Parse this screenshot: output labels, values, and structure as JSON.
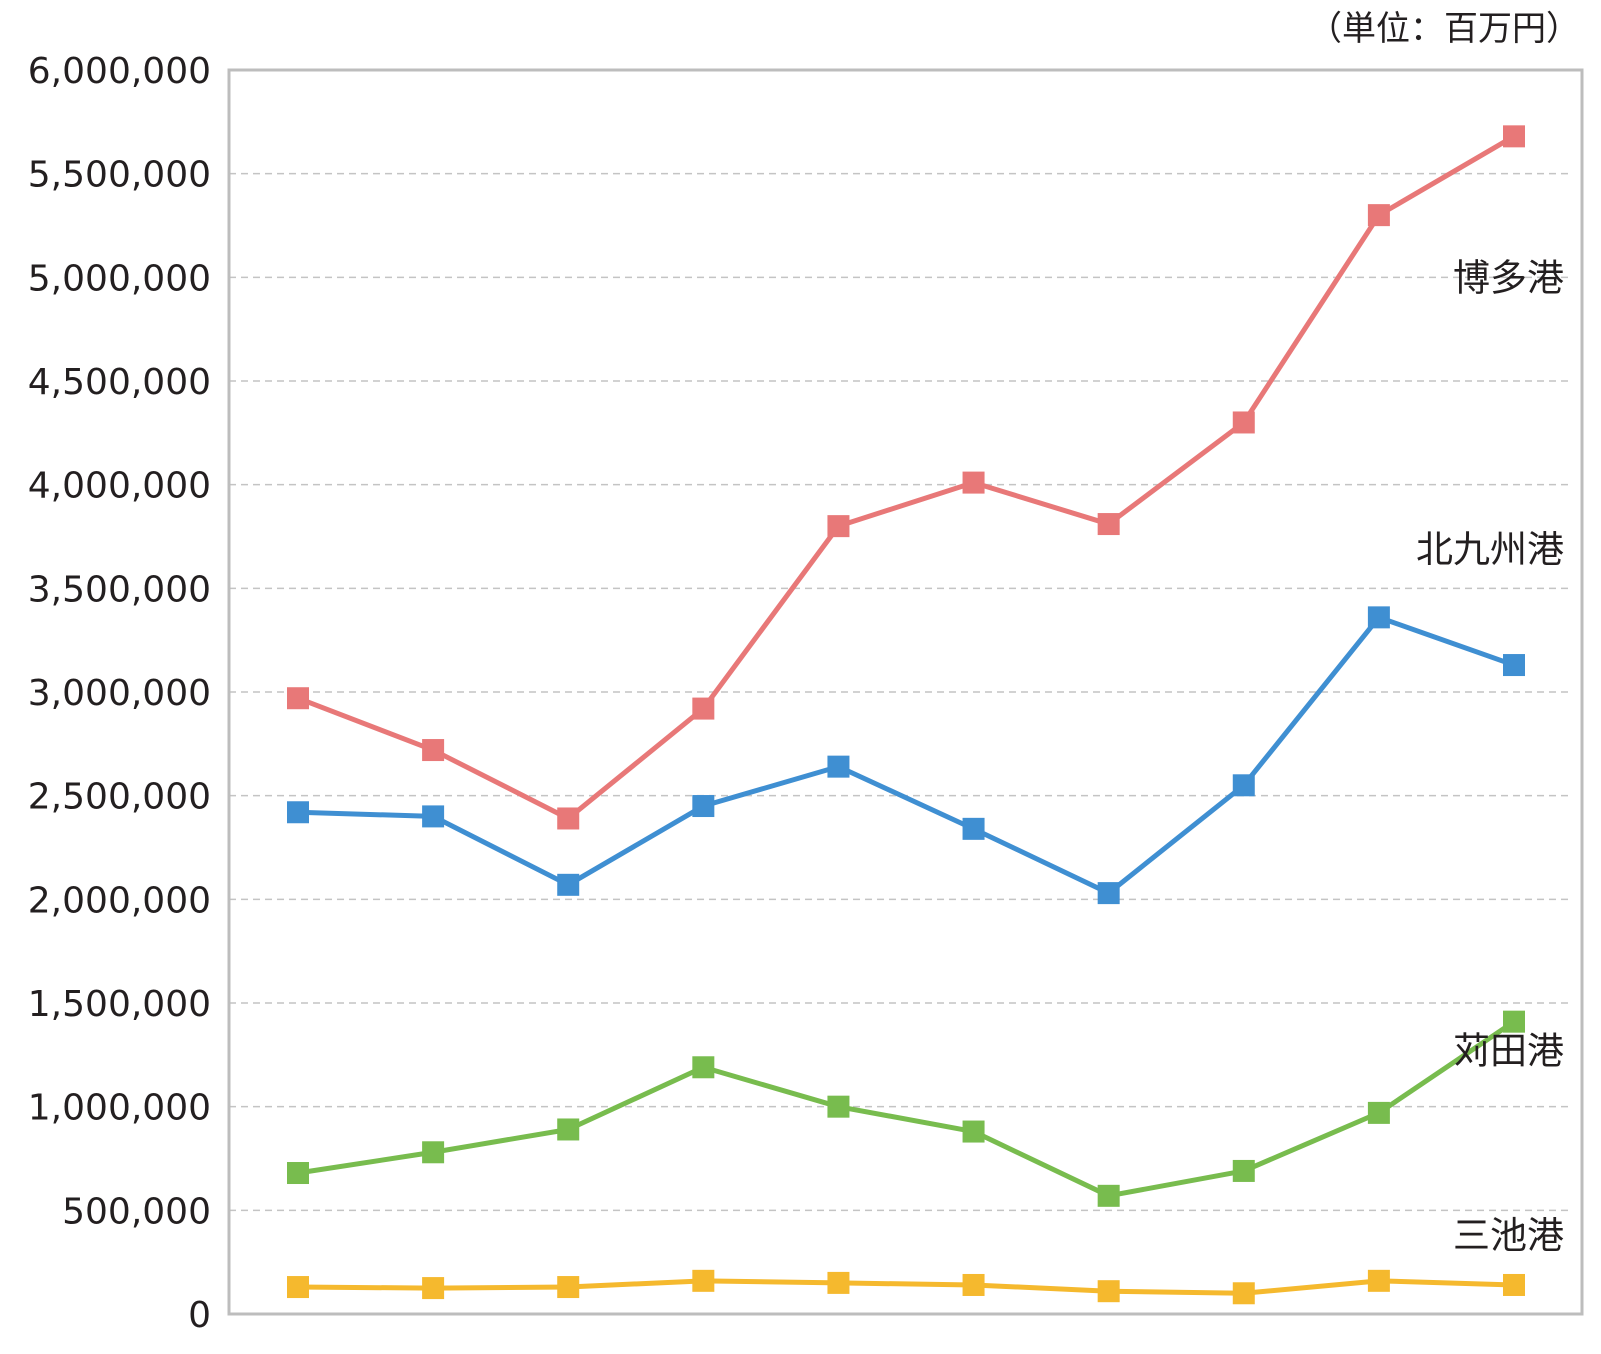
{
  "chart_data": {
    "type": "line",
    "unit_label": "（単位：百万円）",
    "x": [
      "",
      "",
      "",
      "",
      "",
      "",
      "",
      "",
      "",
      ""
    ],
    "ylim": [
      0,
      6000000
    ],
    "y_ticks": [
      0,
      500000,
      1000000,
      1500000,
      2000000,
      2500000,
      3000000,
      3500000,
      4000000,
      4500000,
      5000000,
      5500000,
      6000000
    ],
    "y_tick_labels": [
      "0",
      "500,000",
      "1,000,000",
      "1,500,000",
      "2,000,000",
      "2,500,000",
      "3,000,000",
      "3,500,000",
      "4,000,000",
      "4,500,000",
      "5,000,000",
      "5,500,000",
      "6,000,000"
    ],
    "grid": true,
    "series": [
      {
        "name": "博多港",
        "color": "#e87878",
        "label_anchor_value": 5000000,
        "values": [
          2970000,
          2720000,
          2390000,
          2920000,
          3800000,
          4010000,
          3810000,
          4300000,
          5300000,
          5680000
        ]
      },
      {
        "name": "北九州港",
        "color": "#3f8fd2",
        "label_anchor_value": 3690000,
        "values": [
          2420000,
          2400000,
          2070000,
          2450000,
          2640000,
          2340000,
          2030000,
          2550000,
          3360000,
          3130000
        ]
      },
      {
        "name": "苅田港",
        "color": "#78bc4e",
        "label_anchor_value": 1270000,
        "values": [
          680000,
          780000,
          890000,
          1190000,
          1000000,
          880000,
          570000,
          690000,
          970000,
          1410000
        ]
      },
      {
        "name": "三池港",
        "color": "#f5b92e",
        "label_anchor_value": 380000,
        "values": [
          130000,
          125000,
          130000,
          160000,
          150000,
          140000,
          110000,
          100000,
          160000,
          140000
        ]
      }
    ]
  }
}
